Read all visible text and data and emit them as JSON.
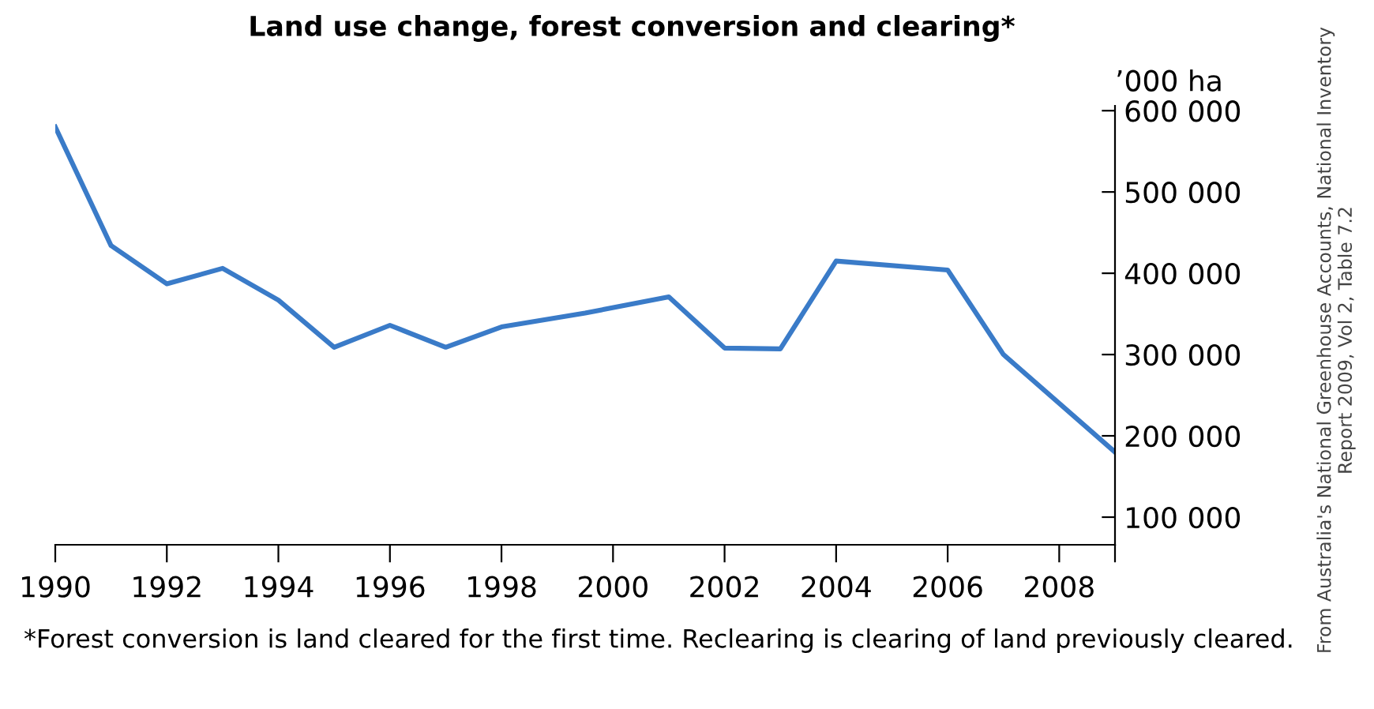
{
  "chart_data": {
    "type": "line",
    "title": "Land use change, forest conversion and clearing*",
    "ylabel": "’000 ha",
    "x": [
      1990,
      1991,
      1992,
      1993,
      1994,
      1995,
      1996,
      1997,
      1998,
      1999.5,
      2001,
      2002,
      2003,
      2004,
      2006,
      2007,
      2009
    ],
    "series": [
      {
        "color": "#3a7bc8",
        "values": [
          580000,
          434000,
          387000,
          406000,
          367000,
          309000,
          336000,
          309000,
          334000,
          351000,
          371000,
          308000,
          307000,
          415000,
          404000,
          300000,
          180000
        ]
      }
    ],
    "xlim": [
      1990,
      2009
    ],
    "xticks": [
      1990,
      1992,
      1994,
      1996,
      1998,
      2000,
      2002,
      2004,
      2006,
      2008,
      {
        "value": 2009,
        "label": null
      }
    ],
    "ylim": [
      66000,
      606000
    ],
    "yticks": [
      {
        "value": 100000,
        "label": "100 000"
      },
      {
        "value": 200000,
        "label": "200 000"
      },
      {
        "value": 300000,
        "label": "300 000"
      },
      {
        "value": 400000,
        "label": "400 000"
      },
      {
        "value": 500000,
        "label": "500 000"
      },
      {
        "value": 600000,
        "label": "600 000"
      }
    ],
    "grid": false,
    "legend": false,
    "marker": "none",
    "line_style": "solid",
    "annotations": [
      "*Forest conversion is land cleared for the first time. Reclearing is clearing of land previously cleared.",
      "From Australia's National Greenhouse Accounts, National Inventory Report 2009, Vol 2, Table 7.2"
    ]
  }
}
